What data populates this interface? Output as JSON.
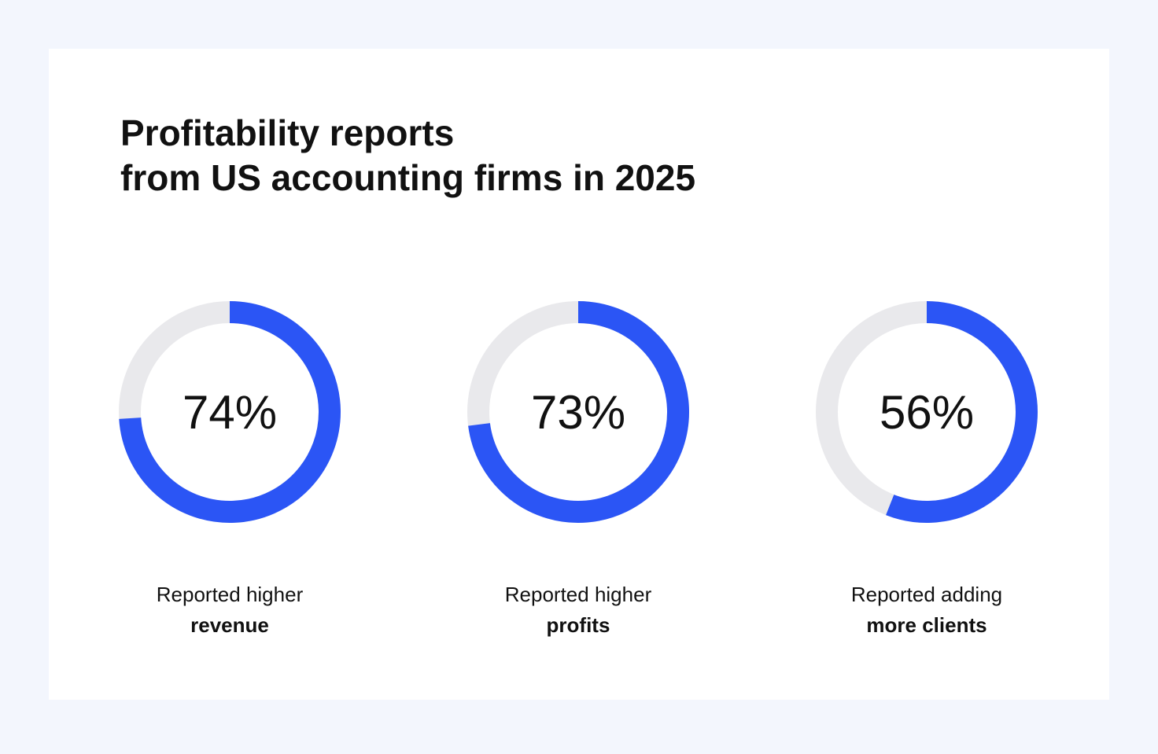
{
  "title_lines": [
    "Profitability reports",
    "from US accounting firms in 2025"
  ],
  "chart_data": [
    {
      "type": "donut",
      "values": [
        74
      ],
      "value_labels": [
        "74%"
      ],
      "ylim": [
        0,
        100
      ],
      "color": "#2b55f5",
      "track_color": "#e9e9ec",
      "caption": "Reported higher",
      "caption_bold": "revenue"
    },
    {
      "type": "donut",
      "values": [
        73
      ],
      "value_labels": [
        "73%"
      ],
      "ylim": [
        0,
        100
      ],
      "color": "#2b55f5",
      "track_color": "#e9e9ec",
      "caption": "Reported higher",
      "caption_bold": "profits"
    },
    {
      "type": "donut",
      "values": [
        56
      ],
      "value_labels": [
        "56%"
      ],
      "ylim": [
        0,
        100
      ],
      "color": "#2b55f5",
      "track_color": "#e9e9ec",
      "caption": "Reported adding",
      "caption_bold": "more clients"
    }
  ]
}
